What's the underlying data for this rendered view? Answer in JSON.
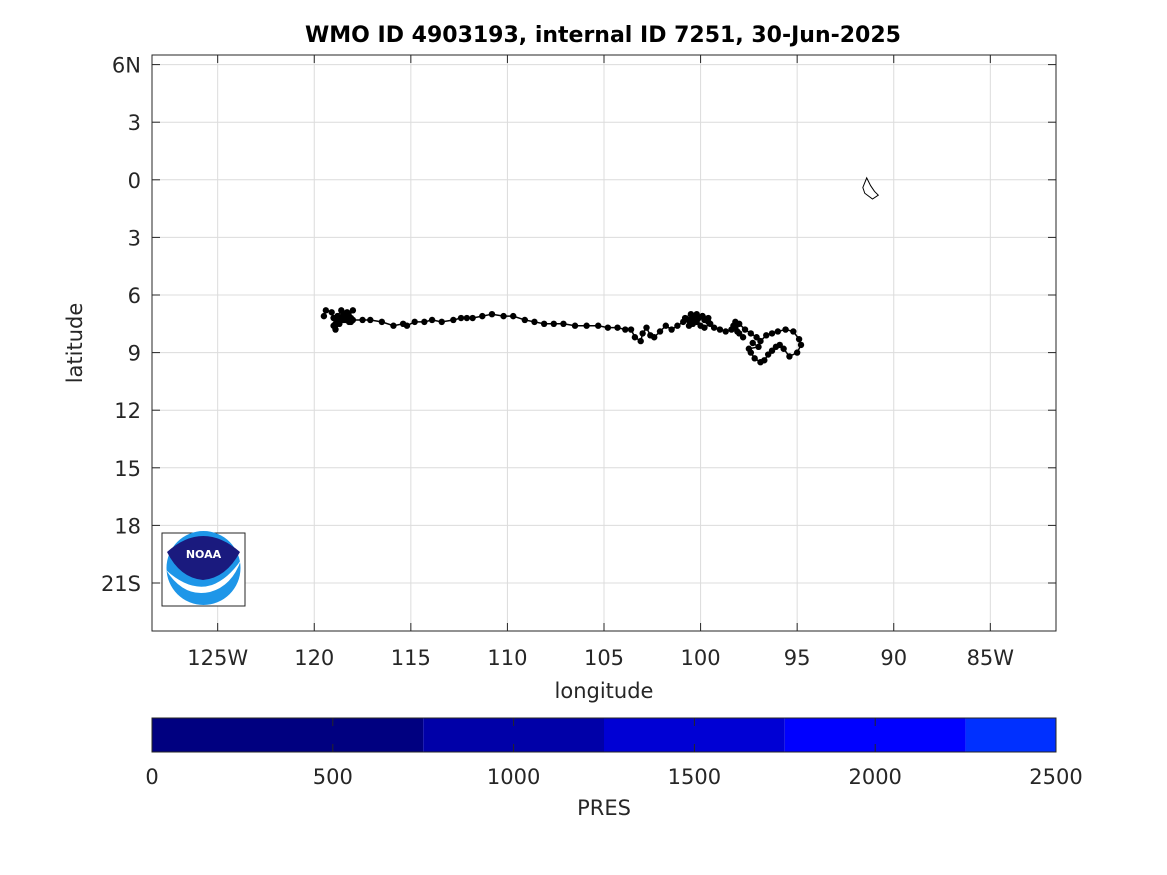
{
  "chart_data": {
    "type": "scatter",
    "title": "WMO ID 4903193, internal ID 7251, 30-Jun-2025",
    "xlabel": "longitude",
    "ylabel": "latitude",
    "xlim": [
      -128.4,
      -81.6
    ],
    "ylim": [
      -23.5,
      6.5
    ],
    "grid": true,
    "x_ticks": [
      {
        "value": -125,
        "label": "125W"
      },
      {
        "value": -120,
        "label": "120"
      },
      {
        "value": -115,
        "label": "115"
      },
      {
        "value": -110,
        "label": "110"
      },
      {
        "value": -105,
        "label": "105"
      },
      {
        "value": -100,
        "label": "100"
      },
      {
        "value": -95,
        "label": "95"
      },
      {
        "value": -90,
        "label": "90"
      },
      {
        "value": -85,
        "label": "85W"
      }
    ],
    "y_ticks": [
      {
        "value": 6,
        "label": "6N"
      },
      {
        "value": 3,
        "label": "3"
      },
      {
        "value": 0,
        "label": "0"
      },
      {
        "value": -3,
        "label": "3"
      },
      {
        "value": -6,
        "label": "6"
      },
      {
        "value": -9,
        "label": "9"
      },
      {
        "value": -12,
        "label": "12"
      },
      {
        "value": -15,
        "label": "15"
      },
      {
        "value": -18,
        "label": "18"
      },
      {
        "value": -21,
        "label": "21S"
      }
    ],
    "track_color": "#000000",
    "series": [
      {
        "x": [
          -119.5,
          -119.4,
          -119.1,
          -119.0,
          -118.8,
          -118.9,
          -118.6,
          -118.5,
          -118.3,
          -118.4,
          -118.2,
          -118.1,
          -118.3,
          -118.6,
          -118.8,
          -119.0,
          -118.9,
          -118.7,
          -118.5,
          -118.2,
          -118.0,
          -118.3,
          -118.5,
          -118.1,
          -118.0,
          -117.5,
          -117.1,
          -116.5,
          -115.9,
          -115.4,
          -115.2,
          -114.8,
          -114.3,
          -113.9,
          -113.4,
          -112.8,
          -112.4,
          -112.1,
          -111.8,
          -111.3,
          -110.8,
          -110.2,
          -109.7,
          -109.1,
          -108.6,
          -108.1,
          -107.6,
          -107.1,
          -106.5,
          -105.9,
          -105.3,
          -104.8,
          -104.3,
          -103.9,
          -103.6,
          -103.4,
          -103.1,
          -103.0,
          -102.8,
          -102.6,
          -102.4,
          -102.1,
          -101.8,
          -101.5,
          -101.2,
          -100.9,
          -100.6,
          -100.5,
          -100.8,
          -100.6,
          -100.4,
          -100.1,
          -99.9,
          -99.8,
          -99.6,
          -99.5,
          -99.8,
          -100.0,
          -100.2,
          -100.4,
          -100.2,
          -99.9,
          -99.6,
          -99.3,
          -99.0,
          -98.7,
          -98.4,
          -98.2,
          -98.0,
          -97.8,
          -98.1,
          -98.3,
          -98.2,
          -98.0,
          -97.7,
          -97.4,
          -97.1,
          -96.9,
          -96.6,
          -96.3,
          -96.0,
          -95.6,
          -95.2,
          -94.9,
          -94.8,
          -95.0,
          -95.4,
          -95.7,
          -95.9,
          -96.1,
          -96.3,
          -96.5,
          -96.7,
          -96.9,
          -97.2,
          -97.4,
          -97.5,
          -97.0,
          -97.3
        ],
        "y": [
          -7.1,
          -6.8,
          -6.9,
          -7.2,
          -7.3,
          -7.5,
          -7.2,
          -7.0,
          -6.9,
          -7.3,
          -7.4,
          -7.2,
          -7.0,
          -6.8,
          -7.1,
          -7.6,
          -7.8,
          -7.5,
          -7.3,
          -7.1,
          -6.8,
          -7.0,
          -7.2,
          -7.4,
          -7.3,
          -7.3,
          -7.3,
          -7.4,
          -7.6,
          -7.5,
          -7.6,
          -7.4,
          -7.4,
          -7.3,
          -7.4,
          -7.3,
          -7.2,
          -7.2,
          -7.2,
          -7.1,
          -7.0,
          -7.1,
          -7.1,
          -7.3,
          -7.4,
          -7.5,
          -7.5,
          -7.5,
          -7.6,
          -7.6,
          -7.6,
          -7.7,
          -7.7,
          -7.8,
          -7.8,
          -8.2,
          -8.4,
          -8.0,
          -7.7,
          -8.1,
          -8.2,
          -7.9,
          -7.6,
          -7.8,
          -7.6,
          -7.4,
          -7.3,
          -7.0,
          -7.2,
          -7.6,
          -7.5,
          -7.2,
          -7.1,
          -7.3,
          -7.2,
          -7.5,
          -7.7,
          -7.6,
          -7.4,
          -7.2,
          -7.0,
          -7.1,
          -7.4,
          -7.7,
          -7.8,
          -7.9,
          -7.8,
          -7.7,
          -8.0,
          -8.2,
          -7.9,
          -7.6,
          -7.4,
          -7.5,
          -7.8,
          -8.0,
          -8.2,
          -8.4,
          -8.1,
          -8.0,
          -7.9,
          -7.8,
          -7.9,
          -8.3,
          -8.6,
          -9.0,
          -9.2,
          -8.8,
          -8.6,
          -8.7,
          -8.9,
          -9.1,
          -9.4,
          -9.5,
          -9.3,
          -9.0,
          -8.8,
          -8.7,
          -8.5
        ]
      }
    ],
    "landmass": {
      "x": [
        -91.4,
        -91.2,
        -91.0,
        -90.8,
        -91.1,
        -91.5,
        -91.6,
        -91.4
      ],
      "y": [
        0.1,
        -0.3,
        -0.6,
        -0.8,
        -1.0,
        -0.7,
        -0.4,
        0.1
      ]
    },
    "colorbar": {
      "label": "PRES",
      "range": [
        0,
        2500
      ],
      "ticks": [
        {
          "value": 0,
          "label": "0"
        },
        {
          "value": 500,
          "label": "500"
        },
        {
          "value": 1000,
          "label": "1000"
        },
        {
          "value": 1500,
          "label": "1500"
        },
        {
          "value": 2000,
          "label": "2000"
        },
        {
          "value": 2500,
          "label": "2500"
        }
      ],
      "bands": [
        {
          "from": 0,
          "to": 750,
          "color": "#000080"
        },
        {
          "from": 750,
          "to": 1250,
          "color": "#0000A8"
        },
        {
          "from": 1250,
          "to": 1750,
          "color": "#0000D4"
        },
        {
          "from": 1750,
          "to": 2250,
          "color": "#0000FF"
        },
        {
          "from": 2250,
          "to": 2500,
          "color": "#0030FF"
        }
      ]
    }
  },
  "logo": {
    "text": "NOAA",
    "colors": {
      "dark": "#1a1a7e",
      "light": "#1e96e8"
    }
  }
}
